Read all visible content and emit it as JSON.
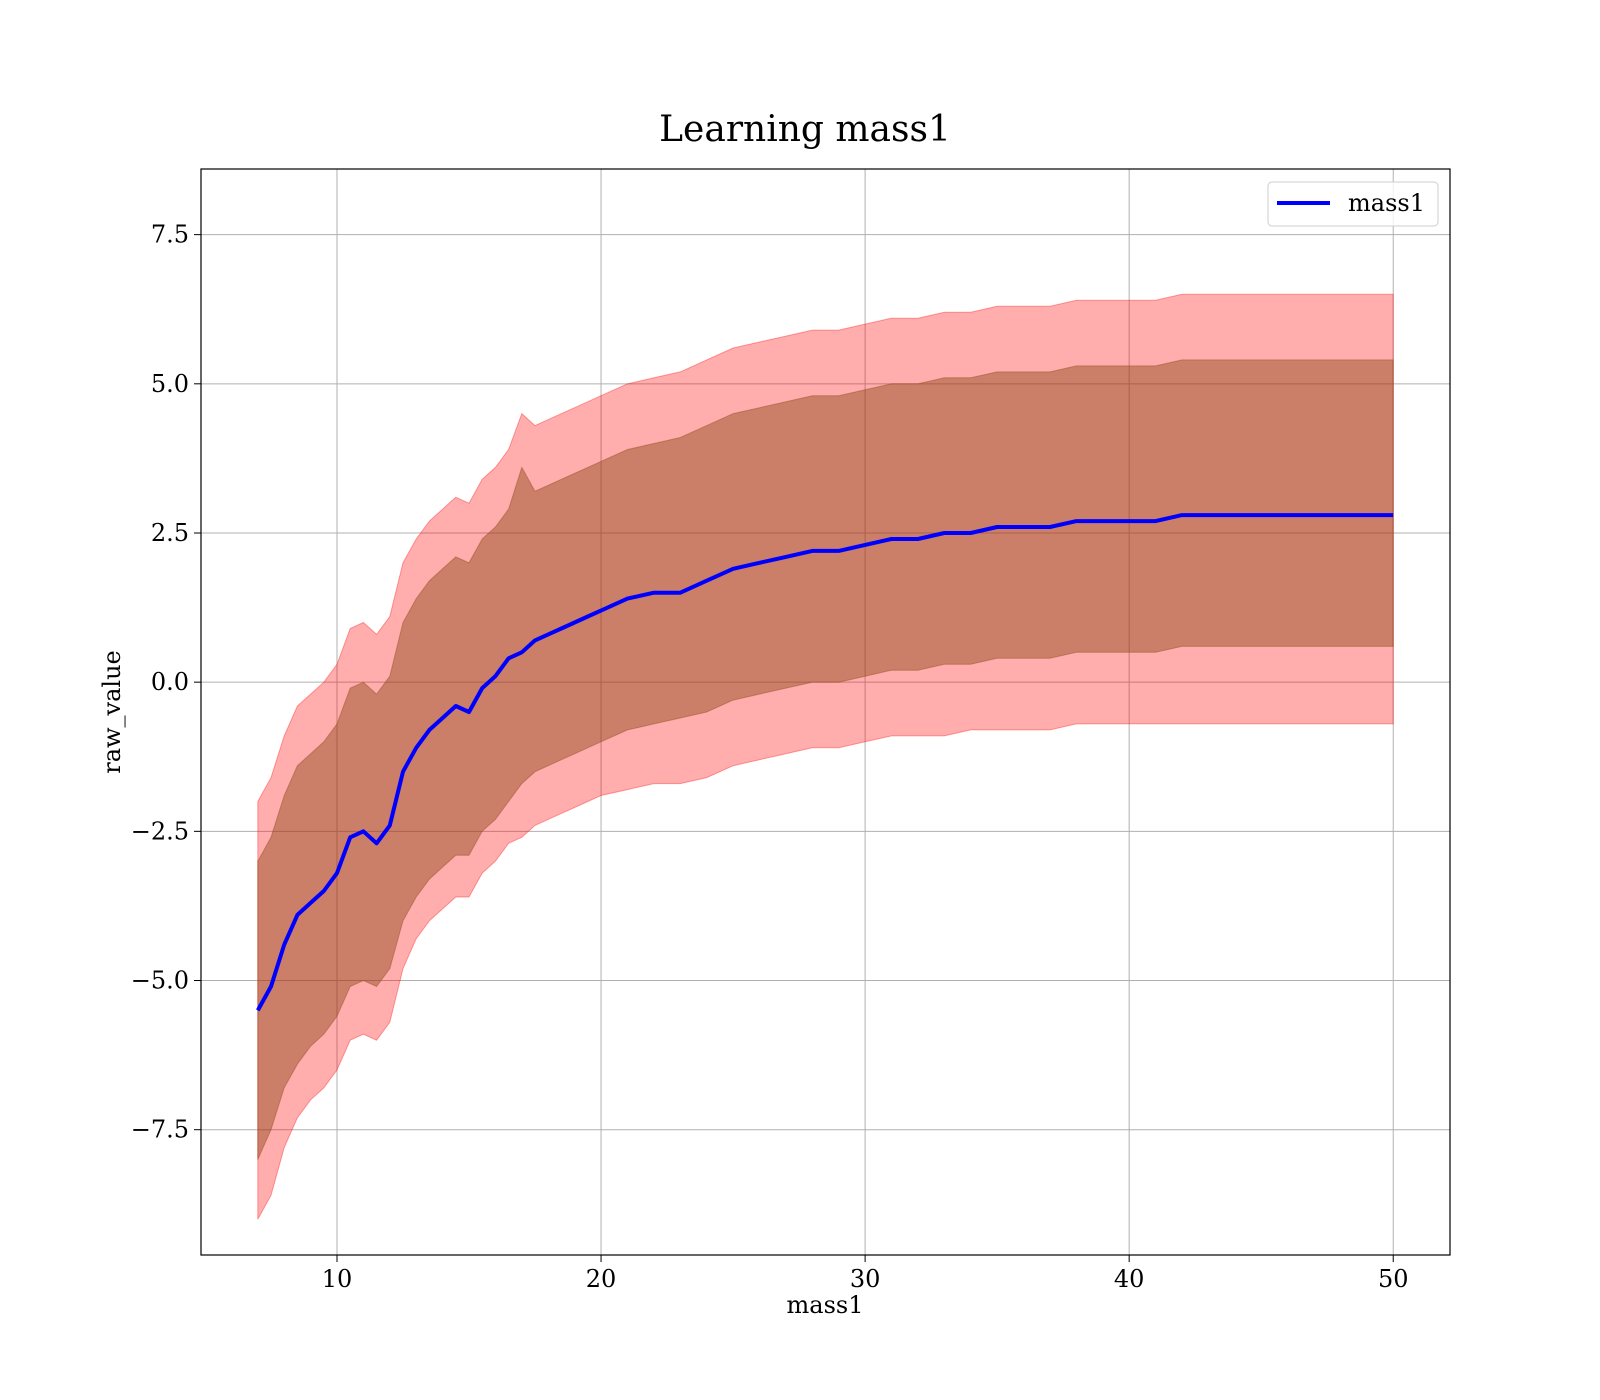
{
  "chart_data": {
    "type": "line",
    "title": "Learning mass1",
    "xlabel": "mass1",
    "ylabel": "raw_value",
    "xlim": [
      4.85,
      52.15
    ],
    "ylim": [
      -9.6,
      8.6
    ],
    "xticks": [
      10,
      20,
      30,
      40,
      50
    ],
    "xtick_labels": [
      "10",
      "20",
      "30",
      "40",
      "50"
    ],
    "yticks": [
      -7.5,
      -5.0,
      -2.5,
      0.0,
      2.5,
      5.0,
      7.5
    ],
    "ytick_labels": [
      "−7.5",
      "−5.0",
      "−2.5",
      "0.0",
      "2.5",
      "5.0",
      "7.5"
    ],
    "grid": true,
    "legend": {
      "location": "upper right",
      "entries": [
        "mass1"
      ]
    },
    "colors": {
      "line": "#0000ff",
      "outer_band": "#ff0000",
      "inner_band": "#8b4513"
    },
    "series": [
      {
        "name": "mass1",
        "role": "mean",
        "x": [
          7.0,
          7.5,
          8.0,
          8.5,
          9.0,
          9.5,
          10.0,
          10.5,
          11.0,
          11.5,
          12.0,
          12.5,
          13.0,
          13.5,
          14.0,
          14.5,
          15.0,
          15.5,
          16.0,
          16.5,
          17.0,
          17.5,
          18.0,
          18.5,
          19.0,
          19.5,
          20.0,
          21.0,
          22.0,
          23.0,
          24.0,
          25.0,
          26.0,
          27.0,
          28.0,
          29.0,
          30.0,
          31.0,
          32.0,
          33.0,
          34.0,
          35.0,
          36.0,
          37.0,
          38.0,
          39.0,
          40.0,
          41.0,
          42.0,
          43.0,
          44.0,
          45.0,
          46.0,
          47.0,
          48.0,
          49.0,
          50.0
        ],
        "y": [
          -5.5,
          -5.1,
          -4.4,
          -3.9,
          -3.7,
          -3.5,
          -3.2,
          -2.6,
          -2.5,
          -2.7,
          -2.4,
          -1.5,
          -1.1,
          -0.8,
          -0.6,
          -0.4,
          -0.5,
          -0.1,
          0.1,
          0.4,
          0.5,
          0.7,
          0.8,
          0.9,
          1.0,
          1.1,
          1.2,
          1.4,
          1.5,
          1.5,
          1.7,
          1.9,
          2.0,
          2.1,
          2.2,
          2.2,
          2.3,
          2.4,
          2.4,
          2.5,
          2.5,
          2.6,
          2.6,
          2.6,
          2.7,
          2.7,
          2.7,
          2.7,
          2.8,
          2.8,
          2.8,
          2.8,
          2.8,
          2.8,
          2.8,
          2.8,
          2.8
        ]
      },
      {
        "name": "",
        "role": "outer band (min-max)",
        "x": [
          7.0,
          7.5,
          8.0,
          8.5,
          9.0,
          9.5,
          10.0,
          10.5,
          11.0,
          11.5,
          12.0,
          12.5,
          13.0,
          13.5,
          14.0,
          14.5,
          15.0,
          15.5,
          16.0,
          16.5,
          17.0,
          17.5,
          18.0,
          18.5,
          19.0,
          19.5,
          20.0,
          21.0,
          22.0,
          23.0,
          24.0,
          25.0,
          26.0,
          27.0,
          28.0,
          29.0,
          30.0,
          31.0,
          32.0,
          33.0,
          34.0,
          35.0,
          36.0,
          37.0,
          38.0,
          39.0,
          40.0,
          41.0,
          42.0,
          43.0,
          44.0,
          45.0,
          46.0,
          47.0,
          48.0,
          49.0,
          50.0
        ],
        "lower": [
          -9.0,
          -8.6,
          -7.8,
          -7.3,
          -7.0,
          -6.8,
          -6.5,
          -6.0,
          -5.9,
          -6.0,
          -5.7,
          -4.8,
          -4.3,
          -4.0,
          -3.8,
          -3.6,
          -3.6,
          -3.2,
          -3.0,
          -2.7,
          -2.6,
          -2.4,
          -2.3,
          -2.2,
          -2.1,
          -2.0,
          -1.9,
          -1.8,
          -1.7,
          -1.7,
          -1.6,
          -1.4,
          -1.3,
          -1.2,
          -1.1,
          -1.1,
          -1.0,
          -0.9,
          -0.9,
          -0.9,
          -0.8,
          -0.8,
          -0.8,
          -0.8,
          -0.7,
          -0.7,
          -0.7,
          -0.7,
          -0.7,
          -0.7,
          -0.7,
          -0.7,
          -0.7,
          -0.7,
          -0.7,
          -0.7,
          -0.7
        ],
        "upper": [
          -2.0,
          -1.6,
          -0.9,
          -0.4,
          -0.2,
          0.0,
          0.3,
          0.9,
          1.0,
          0.8,
          1.1,
          2.0,
          2.4,
          2.7,
          2.9,
          3.1,
          3.0,
          3.4,
          3.6,
          3.9,
          4.5,
          4.3,
          4.4,
          4.5,
          4.6,
          4.7,
          4.8,
          5.0,
          5.1,
          5.2,
          5.4,
          5.6,
          5.7,
          5.8,
          5.9,
          5.9,
          6.0,
          6.1,
          6.1,
          6.2,
          6.2,
          6.3,
          6.3,
          6.3,
          6.4,
          6.4,
          6.4,
          6.4,
          6.5,
          6.5,
          6.5,
          6.5,
          6.5,
          6.5,
          6.5,
          6.5,
          6.5
        ]
      },
      {
        "name": "",
        "role": "inner band (std)",
        "x": [
          7.0,
          7.5,
          8.0,
          8.5,
          9.0,
          9.5,
          10.0,
          10.5,
          11.0,
          11.5,
          12.0,
          12.5,
          13.0,
          13.5,
          14.0,
          14.5,
          15.0,
          15.5,
          16.0,
          16.5,
          17.0,
          17.5,
          18.0,
          18.5,
          19.0,
          19.5,
          20.0,
          21.0,
          22.0,
          23.0,
          24.0,
          25.0,
          26.0,
          27.0,
          28.0,
          29.0,
          30.0,
          31.0,
          32.0,
          33.0,
          34.0,
          35.0,
          36.0,
          37.0,
          38.0,
          39.0,
          40.0,
          41.0,
          42.0,
          43.0,
          44.0,
          45.0,
          46.0,
          47.0,
          48.0,
          49.0,
          50.0
        ],
        "lower": [
          -8.0,
          -7.5,
          -6.8,
          -6.4,
          -6.1,
          -5.9,
          -5.6,
          -5.1,
          -5.0,
          -5.1,
          -4.8,
          -4.0,
          -3.6,
          -3.3,
          -3.1,
          -2.9,
          -2.9,
          -2.5,
          -2.3,
          -2.0,
          -1.7,
          -1.5,
          -1.4,
          -1.3,
          -1.2,
          -1.1,
          -1.0,
          -0.8,
          -0.7,
          -0.6,
          -0.5,
          -0.3,
          -0.2,
          -0.1,
          0.0,
          0.0,
          0.1,
          0.2,
          0.2,
          0.3,
          0.3,
          0.4,
          0.4,
          0.4,
          0.5,
          0.5,
          0.5,
          0.5,
          0.6,
          0.6,
          0.6,
          0.6,
          0.6,
          0.6,
          0.6,
          0.6,
          0.6
        ],
        "upper": [
          -3.0,
          -2.6,
          -1.9,
          -1.4,
          -1.2,
          -1.0,
          -0.7,
          -0.1,
          0.0,
          -0.2,
          0.1,
          1.0,
          1.4,
          1.7,
          1.9,
          2.1,
          2.0,
          2.4,
          2.6,
          2.9,
          3.6,
          3.2,
          3.3,
          3.4,
          3.5,
          3.6,
          3.7,
          3.9,
          4.0,
          4.1,
          4.3,
          4.5,
          4.6,
          4.7,
          4.8,
          4.8,
          4.9,
          5.0,
          5.0,
          5.1,
          5.1,
          5.2,
          5.2,
          5.2,
          5.3,
          5.3,
          5.3,
          5.3,
          5.4,
          5.4,
          5.4,
          5.4,
          5.4,
          5.4,
          5.4,
          5.4,
          5.4
        ]
      }
    ]
  }
}
